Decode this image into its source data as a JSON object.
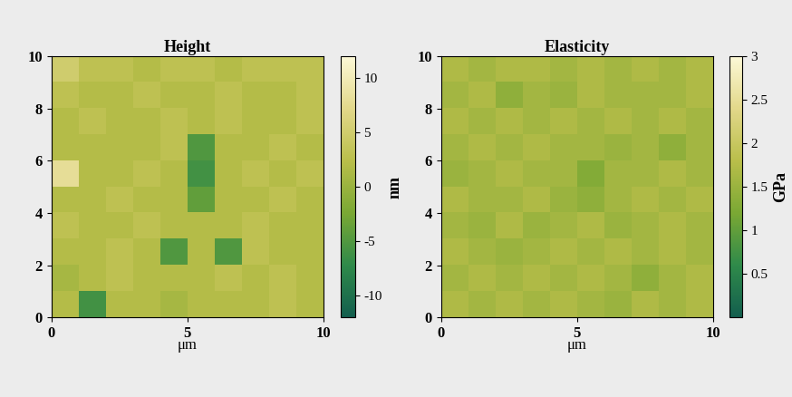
{
  "chart_data": [
    {
      "type": "heatmap",
      "title": "Height",
      "xlabel": "μm",
      "xlim": [
        0,
        10
      ],
      "ylim": [
        0,
        10
      ],
      "xticks": [
        0,
        5,
        10
      ],
      "yticks": [
        0,
        2,
        4,
        6,
        8,
        10
      ],
      "color_label": "nm",
      "color_range": [
        -12,
        12
      ],
      "color_ticks": [
        -10,
        -5,
        0,
        5,
        10
      ],
      "cells": [
        [
          2,
          -6,
          2,
          2,
          1,
          2,
          2,
          2,
          3,
          2
        ],
        [
          1,
          2,
          3,
          2,
          2,
          2,
          3,
          2,
          3,
          2
        ],
        [
          2,
          2,
          3,
          2,
          -5,
          2,
          -5,
          3,
          2,
          2
        ],
        [
          3,
          2,
          2,
          3,
          2,
          2,
          2,
          3,
          2,
          2
        ],
        [
          2,
          2,
          3,
          2,
          2,
          -4,
          2,
          2,
          3,
          2
        ],
        [
          8,
          2,
          2,
          3,
          2,
          -6,
          2,
          3,
          2,
          3
        ],
        [
          2,
          2,
          2,
          2,
          3,
          -5,
          2,
          2,
          3,
          2
        ],
        [
          2,
          3,
          2,
          2,
          3,
          2,
          3,
          2,
          2,
          3
        ],
        [
          3,
          2,
          2,
          3,
          2,
          2,
          3,
          2,
          2,
          3
        ],
        [
          5,
          3,
          3,
          2,
          3,
          3,
          2,
          3,
          3,
          3
        ]
      ]
    },
    {
      "type": "heatmap",
      "title": "Elasticity",
      "xlabel": "μm",
      "xlim": [
        0,
        10
      ],
      "ylim": [
        0,
        10
      ],
      "xticks": [
        0,
        5,
        10
      ],
      "yticks": [
        0,
        2,
        4,
        6,
        8,
        10
      ],
      "color_label": "GPa",
      "color_range": [
        0,
        3
      ],
      "color_ticks": [
        0.5,
        1,
        1.5,
        2,
        2.5,
        3
      ],
      "cells": [
        [
          1.7,
          1.6,
          1.7,
          1.6,
          1.7,
          1.6,
          1.5,
          1.7,
          1.6,
          1.7
        ],
        [
          1.6,
          1.7,
          1.6,
          1.7,
          1.6,
          1.7,
          1.6,
          1.4,
          1.6,
          1.7
        ],
        [
          1.7,
          1.6,
          1.5,
          1.6,
          1.7,
          1.6,
          1.7,
          1.6,
          1.7,
          1.6
        ],
        [
          1.6,
          1.5,
          1.7,
          1.5,
          1.6,
          1.7,
          1.5,
          1.6,
          1.7,
          1.6
        ],
        [
          1.7,
          1.6,
          1.6,
          1.7,
          1.5,
          1.4,
          1.6,
          1.7,
          1.6,
          1.7
        ],
        [
          1.5,
          1.6,
          1.7,
          1.6,
          1.6,
          1.3,
          1.6,
          1.6,
          1.7,
          1.6
        ],
        [
          1.6,
          1.7,
          1.6,
          1.7,
          1.6,
          1.6,
          1.5,
          1.6,
          1.4,
          1.6
        ],
        [
          1.7,
          1.6,
          1.7,
          1.6,
          1.7,
          1.6,
          1.7,
          1.6,
          1.7,
          1.6
        ],
        [
          1.6,
          1.7,
          1.4,
          1.6,
          1.5,
          1.7,
          1.6,
          1.6,
          1.6,
          1.7
        ],
        [
          1.7,
          1.6,
          1.7,
          1.7,
          1.6,
          1.7,
          1.6,
          1.7,
          1.6,
          1.7
        ]
      ]
    }
  ]
}
